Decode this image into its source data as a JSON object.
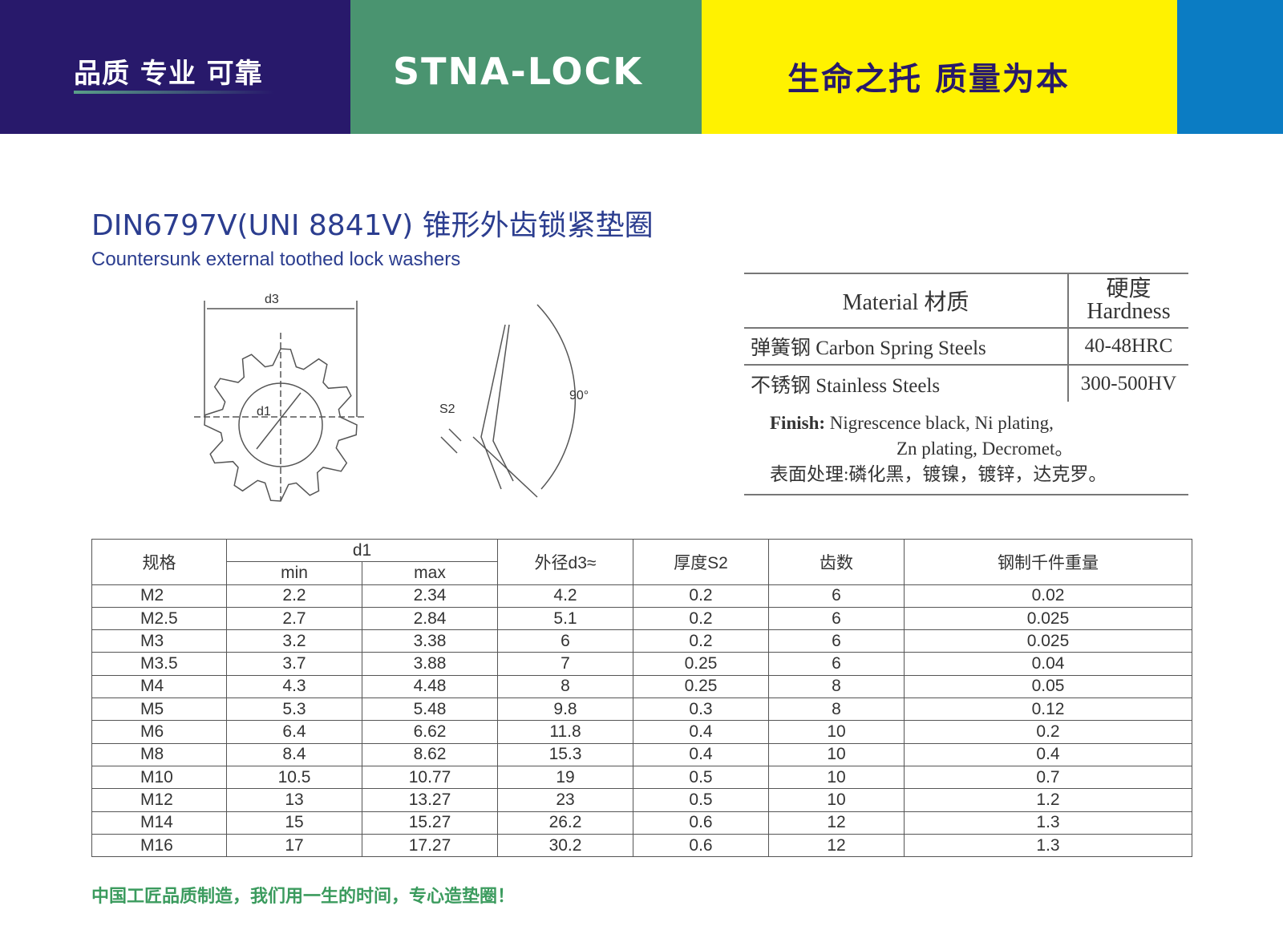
{
  "banner": {
    "slogan_left": "品质 专业 可靠",
    "logo": "STNA-LOCK",
    "slogan_right": "生命之托 质量为本",
    "colors": [
      "#28196b",
      "#4a9470",
      "#fff200",
      "#0b7cc3"
    ]
  },
  "title": "DIN6797V(UNI 8841V) 锥形外齿锁紧垫圈",
  "subtitle": "Countersunk external toothed lock washers",
  "drawing": {
    "d3": "d3",
    "d1": "d1",
    "s2": "S2",
    "angle": "90°"
  },
  "material": {
    "header_material": "Material  材质",
    "header_hardness_cn": "硬度",
    "header_hardness_en": "Hardness",
    "rows": [
      {
        "material": "弹簧钢  Carbon Spring  Steels",
        "hardness": "40-48HRC"
      },
      {
        "material": "不锈钢 Stainless Steels",
        "hardness": "300-500HV"
      }
    ],
    "finish_label": "Finish:",
    "finish_line1": " Nigrescence black,  Ni plating,",
    "finish_line2": "Zn plating,  Decromet。",
    "finish_cn": "表面处理:磷化黑，镀镍，镀锌，达克罗。"
  },
  "table": {
    "headers": {
      "spec": "规格",
      "d1": "d1",
      "min": "min",
      "max": "max",
      "d3": "外径d3≈",
      "s2": "厚度S2",
      "teeth": "齿数",
      "weight": "钢制千件重量"
    },
    "rows": [
      [
        "M2",
        "2.2",
        "2.34",
        "4.2",
        "0.2",
        "6",
        "0.02"
      ],
      [
        "M2.5",
        "2.7",
        "2.84",
        "5.1",
        "0.2",
        "6",
        "0.025"
      ],
      [
        "M3",
        "3.2",
        "3.38",
        "6",
        "0.2",
        "6",
        "0.025"
      ],
      [
        "M3.5",
        "3.7",
        "3.88",
        "7",
        "0.25",
        "6",
        "0.04"
      ],
      [
        "M4",
        "4.3",
        "4.48",
        "8",
        "0.25",
        "8",
        "0.05"
      ],
      [
        "M5",
        "5.3",
        "5.48",
        "9.8",
        "0.3",
        "8",
        "0.12"
      ],
      [
        "M6",
        "6.4",
        "6.62",
        "11.8",
        "0.4",
        "10",
        "0.2"
      ],
      [
        "M8",
        "8.4",
        "8.62",
        "15.3",
        "0.4",
        "10",
        "0.4"
      ],
      [
        "M10",
        "10.5",
        "10.77",
        "19",
        "0.5",
        "10",
        "0.7"
      ],
      [
        "M12",
        "13",
        "13.27",
        "23",
        "0.5",
        "10",
        "1.2"
      ],
      [
        "M14",
        "15",
        "15.27",
        "26.2",
        "0.6",
        "12",
        "1.3"
      ],
      [
        "M16",
        "17",
        "17.27",
        "30.2",
        "0.6",
        "12",
        "1.3"
      ]
    ]
  },
  "footer": "中国工匠品质制造，我们用一生的时间，专心造垫圈！"
}
